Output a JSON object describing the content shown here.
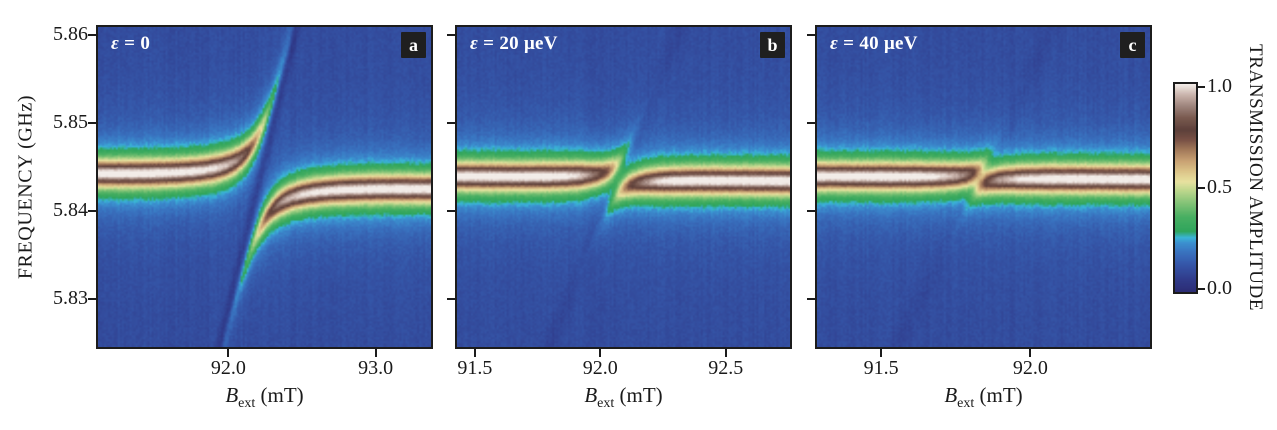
{
  "figure": {
    "y_axis": {
      "label": "FREQUENCY (GHz)",
      "tick_labels": [
        "5.86",
        "5.85",
        "5.84",
        "5.83"
      ],
      "tick_values": [
        5.86,
        5.85,
        5.84,
        5.83
      ]
    },
    "x_axis": {
      "label_main": "B",
      "label_sub": "ext",
      "label_unit": " (mT)"
    },
    "colorbar": {
      "label": "TRANSMISSION AMPLITUDE",
      "tick_labels": [
        "1.0",
        "0.5",
        "0.0"
      ],
      "tick_values": [
        1.0,
        0.5,
        0.0
      ],
      "range": [
        0.0,
        1.0
      ],
      "colormap_stops": [
        [
          0.0,
          "#2c2d74"
        ],
        [
          0.06,
          "#303c8c"
        ],
        [
          0.13,
          "#3556a8"
        ],
        [
          0.19,
          "#3973c0"
        ],
        [
          0.235,
          "#3b90cf"
        ],
        [
          0.26,
          "#3ab5d8"
        ],
        [
          0.29,
          "#2fa55c"
        ],
        [
          0.36,
          "#48af62"
        ],
        [
          0.43,
          "#86c478"
        ],
        [
          0.49,
          "#c0d88e"
        ],
        [
          0.53,
          "#e8e2a0"
        ],
        [
          0.58,
          "#dcc489"
        ],
        [
          0.63,
          "#c9a274"
        ],
        [
          0.68,
          "#a57c5c"
        ],
        [
          0.73,
          "#7a5246"
        ],
        [
          0.78,
          "#5d403a"
        ],
        [
          0.84,
          "#7a5a50"
        ],
        [
          0.9,
          "#a18880"
        ],
        [
          0.95,
          "#cab4ac"
        ],
        [
          1.0,
          "#f2ece8"
        ]
      ]
    }
  },
  "chart_data": [
    {
      "type": "heatmap",
      "panel_label": "a",
      "annotation": "ε = 0",
      "annotation_symbol": "ε",
      "annotation_rest": " = 0",
      "xlabel": "B_ext (mT)",
      "ylabel": "FREQUENCY (GHz)",
      "zlabel": "TRANSMISSION AMPLITUDE",
      "x_range": [
        91.114,
        93.376
      ],
      "x_ticks": [
        92.0,
        93.0
      ],
      "x_tick_labels": [
        "92.0",
        "93.0"
      ],
      "y_range": [
        5.8246,
        5.8609
      ],
      "y_ticks": [
        5.86,
        5.85,
        5.84,
        5.83
      ],
      "z_range": [
        0.0,
        1.0
      ],
      "model": {
        "cavity_freq_ghz": 5.8434,
        "cavity_slope_ghz_per_mt": -0.00044,
        "spin_crossing_field_mt": 92.21,
        "spin_slope_ghz_per_mt": 0.07,
        "coupling_ghz": 0.0055,
        "cavity_linewidth_ghz": 0.0014,
        "background_amplitude": 0.1,
        "peak_amplitude": 0.95,
        "spin_dip_depth": 0.075,
        "spin_dip_width_ghz": 0.0022,
        "crossing_damp": 0.0
      }
    },
    {
      "type": "heatmap",
      "panel_label": "b",
      "annotation": "ε = 20 μeV",
      "annotation_symbol": "ε",
      "annotation_rest": " = 20 μeV",
      "xlabel": "B_ext (mT)",
      "ylabel": "FREQUENCY (GHz)",
      "zlabel": "TRANSMISSION AMPLITUDE",
      "x_range": [
        91.429,
        92.756
      ],
      "x_ticks": [
        91.5,
        92.0,
        92.5
      ],
      "x_tick_labels": [
        "91.5",
        "92.0",
        "92.5"
      ],
      "y_range": [
        5.8246,
        5.8609
      ],
      "y_ticks": [
        5.86,
        5.85,
        5.84,
        5.83
      ],
      "z_range": [
        0.0,
        1.0
      ],
      "model": {
        "cavity_freq_ghz": 5.8437,
        "cavity_slope_ghz_per_mt": -0.0003,
        "spin_crossing_field_mt": 92.07,
        "spin_slope_ghz_per_mt": 0.07,
        "coupling_ghz": 0.0018,
        "cavity_linewidth_ghz": 0.0014,
        "background_amplitude": 0.1,
        "peak_amplitude": 0.95,
        "spin_dip_depth": 0.03,
        "spin_dip_width_ghz": 0.0022,
        "crossing_damp": 0.22
      }
    },
    {
      "type": "heatmap",
      "panel_label": "c",
      "annotation": "ε = 40 μeV",
      "annotation_symbol": "ε",
      "annotation_rest": " = 40 μeV",
      "xlabel": "B_ext (mT)",
      "ylabel": "FREQUENCY (GHz)",
      "zlabel": "TRANSMISSION AMPLITUDE",
      "x_range": [
        91.285,
        92.401
      ],
      "x_ticks": [
        91.5,
        92.0
      ],
      "x_tick_labels": [
        "91.5",
        "92.0"
      ],
      "y_range": [
        5.8246,
        5.8609
      ],
      "y_ticks": [
        5.86,
        5.85,
        5.84,
        5.83
      ],
      "z_range": [
        0.0,
        1.0
      ],
      "model": {
        "cavity_freq_ghz": 5.8438,
        "cavity_slope_ghz_per_mt": -0.00025,
        "spin_crossing_field_mt": 91.83,
        "spin_slope_ghz_per_mt": 0.07,
        "coupling_ghz": 0.0011,
        "cavity_linewidth_ghz": 0.0014,
        "background_amplitude": 0.1,
        "peak_amplitude": 0.95,
        "spin_dip_depth": 0.02,
        "spin_dip_width_ghz": 0.0022,
        "crossing_damp": 0.12
      }
    }
  ]
}
